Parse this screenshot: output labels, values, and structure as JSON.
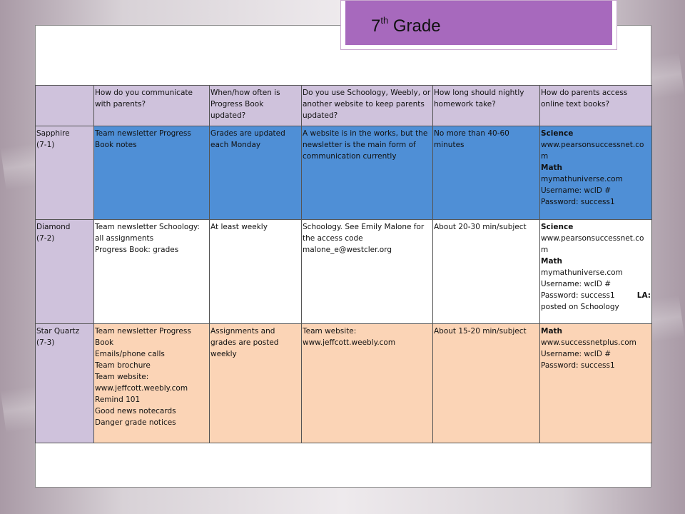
{
  "slide": {
    "title_main": "7",
    "title_sup": "th",
    "title_rest": " Grade"
  },
  "table": {
    "headers": [
      "",
      "How do you communicate with parents?",
      "When/how often is Progress Book updated?",
      "Do you use Schoology, Weebly, or another website to keep parents updated?",
      "How long should nightly homework take?",
      "How do parents access online text books?"
    ],
    "rows": [
      {
        "team": "Sapphire",
        "code": "(7-1)",
        "communicate": "Team newsletter    Progress Book notes",
        "progress_book": "Grades are updated each Monday",
        "website": "A website is in the works, but the newsletter is the main form of communication currently",
        "homework": "No more than 40-60 minutes",
        "textbooks": {
          "science_label": "Science",
          "science_url": "www.pearsonsuccessnet.co m",
          "math_label": "Math",
          "math_url": "mymathuniverse.com",
          "username": "Username: wcID #",
          "password": "Password: success1"
        }
      },
      {
        "team": "Diamond",
        "code": "(7-2)",
        "communicate_1": "Team newsletter Schoology: all assignments",
        "communicate_2": "Progress Book: grades",
        "progress_book": "At least weekly",
        "website_1": "Schoology. See Emily Malone for the access code",
        "website_2": "malone_e@westcler.org",
        "homework": "About 20-30 min/subject",
        "textbooks": {
          "science_label": "Science",
          "science_url": "www.pearsonsuccessnet.co m",
          "math_label": "Math",
          "math_url": "mymathuniverse.com",
          "username": "Username: wcID #",
          "password": "Password: success1",
          "la_label": "LA:",
          "la_note": "posted on Schoology"
        }
      },
      {
        "team": "Star Quartz",
        "code": "(7-3)",
        "communicate_lines": [
          "Team newsletter    Progress Book",
          "Emails/phone calls",
          "Team brochure",
          "Team website: www.jeffcott.weebly.com",
          "Remind 101",
          "Good news notecards",
          "Danger grade notices"
        ],
        "progress_book": "Assignments and grades are posted weekly",
        "website": "Team website: www.jeffcott.weebly.com",
        "homework": "About 15-20 min/subject",
        "textbooks": {
          "math_label": "Math",
          "math_url": "www.successnetplus.com",
          "username": "Username: wcID #",
          "password": "Password: success1"
        }
      }
    ]
  },
  "colors": {
    "header": "#cfc2dc",
    "sapphire": "#4f8fd6",
    "diamond": "#ffffff",
    "star_quartz": "#fbd4b6",
    "title_bar": "#a769bd"
  }
}
